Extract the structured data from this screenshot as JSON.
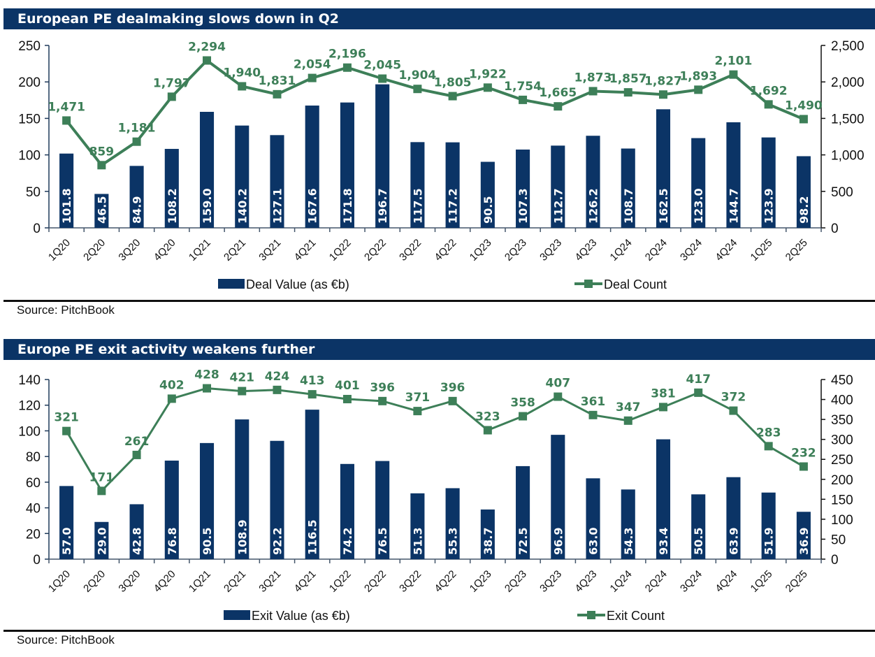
{
  "colors": {
    "bar": "#0b3466",
    "line": "#3d7f58",
    "title_bg": "#0b3466"
  },
  "chart_data": [
    {
      "type": "bar+line",
      "title": "European PE dealmaking slows down in Q2",
      "source": "Source: PitchBook",
      "categories": [
        "1Q20",
        "2Q20",
        "3Q20",
        "4Q20",
        "1Q21",
        "2Q21",
        "3Q21",
        "4Q21",
        "1Q22",
        "2Q22",
        "3Q22",
        "4Q22",
        "1Q23",
        "2Q23",
        "3Q23",
        "4Q23",
        "1Q24",
        "2Q24",
        "3Q24",
        "4Q24",
        "1Q25",
        "2Q25"
      ],
      "series": [
        {
          "name": "Deal Value (as €b)",
          "type": "bar",
          "axis": "left",
          "values": [
            101.8,
            46.5,
            84.9,
            108.2,
            159.0,
            140.2,
            127.1,
            167.6,
            171.8,
            196.7,
            117.5,
            117.2,
            90.5,
            107.3,
            112.7,
            126.2,
            108.7,
            162.5,
            123.0,
            144.7,
            123.9,
            98.2
          ],
          "labels": [
            "101.8",
            "46.5",
            "84.9",
            "108.2",
            "159.0",
            "140.2",
            "127.1",
            "167.6",
            "171.8",
            "196.7",
            "117.5",
            "117.2",
            "90.5",
            "107.3",
            "112.7",
            "126.2",
            "108.7",
            "162.5",
            "123.0",
            "144.7",
            "123.9",
            "98.2"
          ]
        },
        {
          "name": "Deal Count",
          "type": "line",
          "axis": "right",
          "values": [
            1471,
            859,
            1181,
            1797,
            2294,
            1940,
            1831,
            2054,
            2196,
            2045,
            1904,
            1805,
            1922,
            1754,
            1665,
            1873,
            1857,
            1827,
            1893,
            2101,
            1692,
            1490
          ],
          "labels": [
            "1,471",
            "859",
            "1,181",
            "1,797",
            "2,294",
            "1,940",
            "1,831",
            "2,054",
            "2,196",
            "2,045",
            "1,904",
            "1,805",
            "1,922",
            "1,754",
            "1,665",
            "1,873",
            "1,857",
            "1,827",
            "1,893",
            "2,101",
            "1,692",
            "1,490"
          ]
        }
      ],
      "y_left": {
        "range": [
          0,
          250
        ],
        "ticks": [
          0,
          50,
          100,
          150,
          200,
          250
        ],
        "tick_labels": [
          "0",
          "50",
          "100",
          "150",
          "200",
          "250"
        ]
      },
      "y_right": {
        "range": [
          0,
          2500
        ],
        "ticks": [
          0,
          500,
          1000,
          1500,
          2000,
          2500
        ],
        "tick_labels": [
          "0",
          "500",
          "1,000",
          "1,500",
          "2,000",
          "2,500"
        ]
      },
      "legend": {
        "placement": "bottom",
        "items": [
          "Deal Value (as €b)",
          "Deal Count"
        ]
      },
      "grid": false
    },
    {
      "type": "bar+line",
      "title": "Europe PE exit activity weakens further",
      "source": "Source: PitchBook",
      "categories": [
        "1Q20",
        "2Q20",
        "3Q20",
        "4Q20",
        "1Q21",
        "2Q21",
        "3Q21",
        "4Q21",
        "1Q22",
        "2Q22",
        "3Q22",
        "4Q22",
        "1Q23",
        "2Q23",
        "3Q23",
        "4Q23",
        "1Q24",
        "2Q24",
        "3Q24",
        "4Q24",
        "1Q25",
        "2Q25"
      ],
      "series": [
        {
          "name": "Exit Value (as €b)",
          "type": "bar",
          "axis": "left",
          "values": [
            57.0,
            29.0,
            42.8,
            76.8,
            90.5,
            108.9,
            92.2,
            116.5,
            74.2,
            76.5,
            51.3,
            55.3,
            38.7,
            72.5,
            96.9,
            63.0,
            54.3,
            93.4,
            50.5,
            63.9,
            51.9,
            36.9
          ],
          "labels": [
            "57.0",
            "29.0",
            "42.8",
            "76.8",
            "90.5",
            "108.9",
            "92.2",
            "116.5",
            "74.2",
            "76.5",
            "51.3",
            "55.3",
            "38.7",
            "72.5",
            "96.9",
            "63.0",
            "54.3",
            "93.4",
            "50.5",
            "63.9",
            "51.9",
            "36.9"
          ]
        },
        {
          "name": "Exit Count",
          "type": "line",
          "axis": "right",
          "values": [
            321,
            171,
            261,
            402,
            428,
            421,
            424,
            413,
            401,
            396,
            371,
            396,
            323,
            358,
            407,
            361,
            347,
            381,
            417,
            372,
            283,
            232
          ],
          "labels": [
            "321",
            "171",
            "261",
            "402",
            "428",
            "421",
            "424",
            "413",
            "401",
            "396",
            "371",
            "396",
            "323",
            "358",
            "407",
            "361",
            "347",
            "381",
            "417",
            "372",
            "283",
            "232"
          ]
        }
      ],
      "y_left": {
        "range": [
          0,
          140
        ],
        "ticks": [
          0,
          20,
          40,
          60,
          80,
          100,
          120,
          140
        ],
        "tick_labels": [
          "0",
          "20",
          "40",
          "60",
          "80",
          "100",
          "120",
          "140"
        ]
      },
      "y_right": {
        "range": [
          0,
          450
        ],
        "ticks": [
          0,
          50,
          100,
          150,
          200,
          250,
          300,
          350,
          400,
          450
        ],
        "tick_labels": [
          "0",
          "50",
          "100",
          "150",
          "200",
          "250",
          "300",
          "350",
          "400",
          "450"
        ]
      },
      "legend": {
        "placement": "bottom",
        "items": [
          "Exit Value (as €b)",
          "Exit Count"
        ]
      },
      "grid": false
    }
  ]
}
